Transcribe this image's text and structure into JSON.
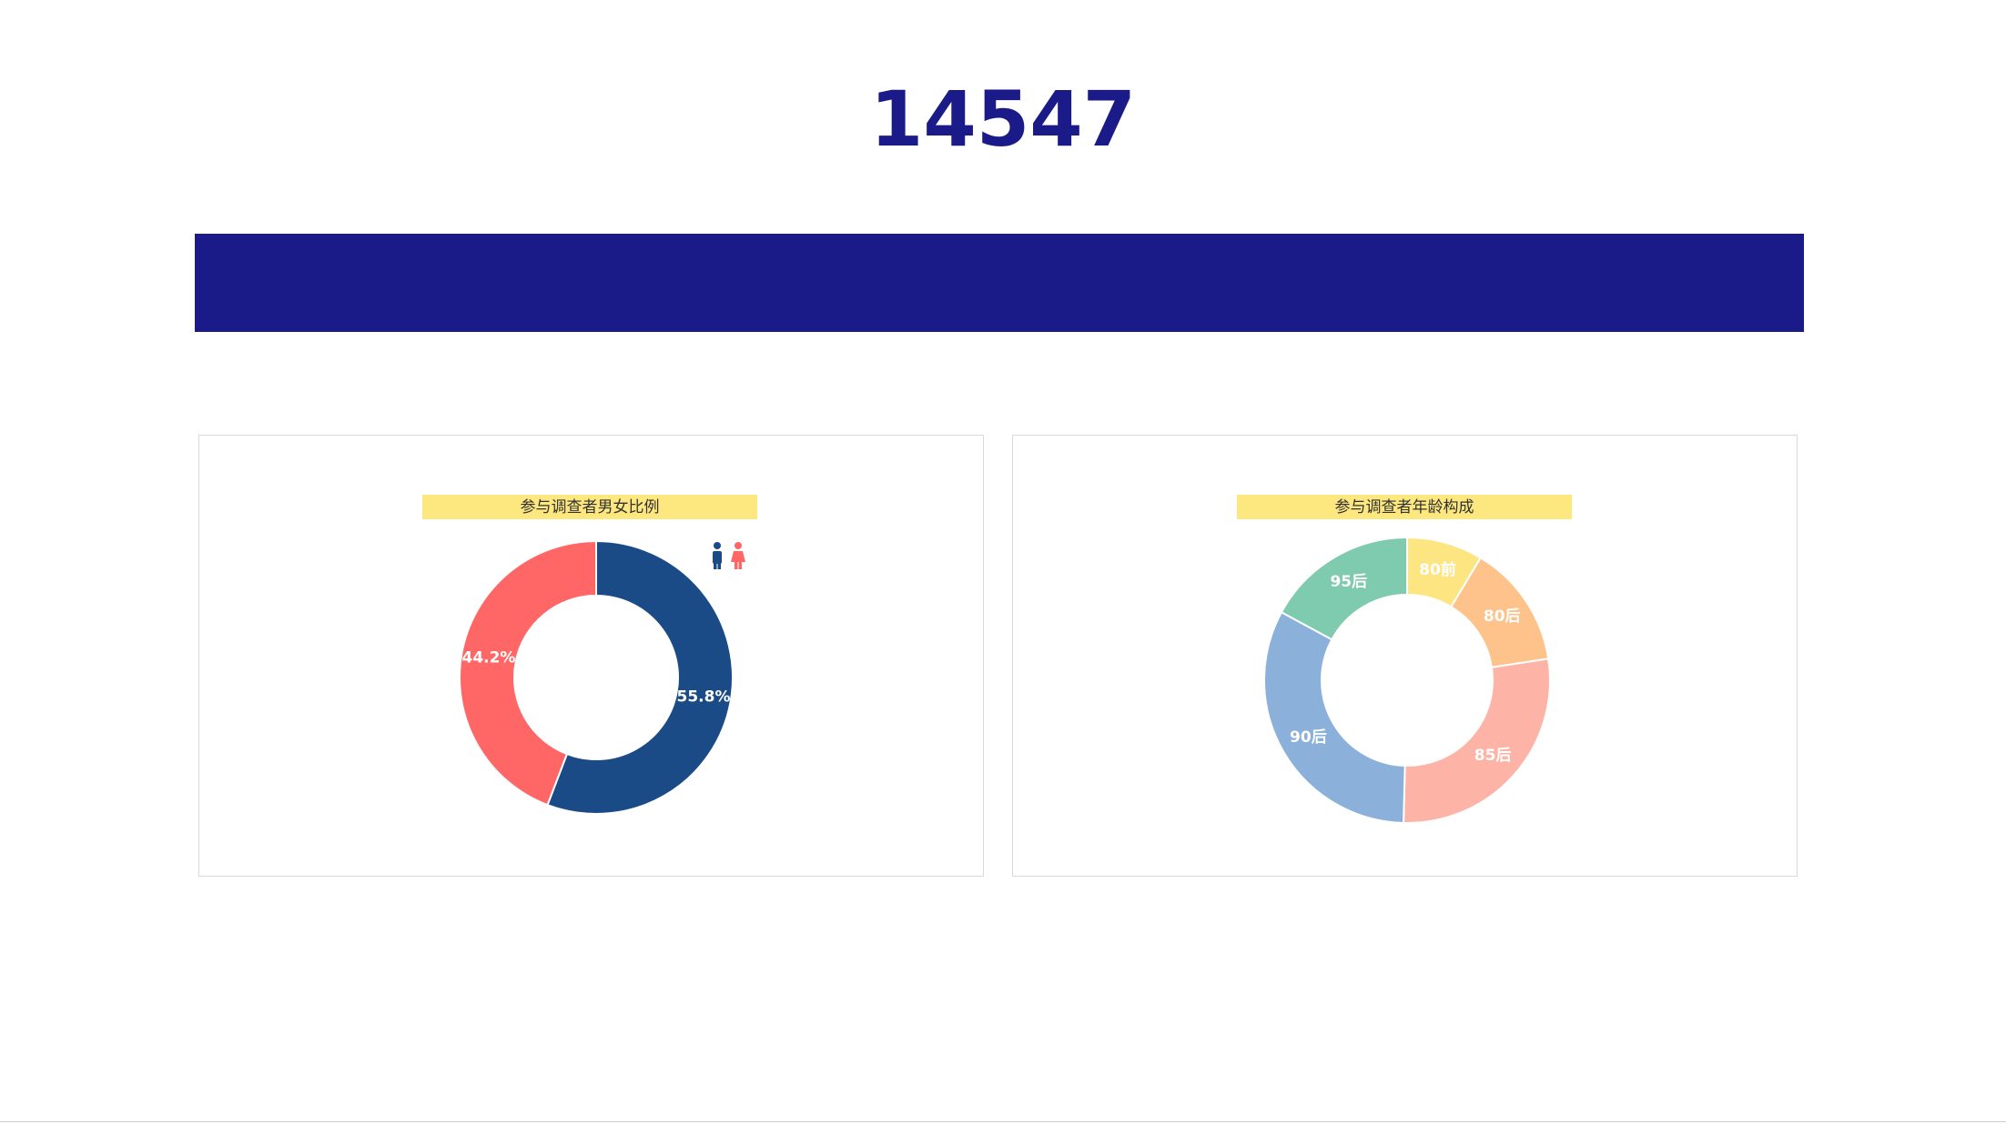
{
  "header": {
    "title": "14547"
  },
  "chart_data": [
    {
      "type": "pie",
      "title": "参与调查者男女比例",
      "values": [
        55.8,
        44.2
      ],
      "value_labels": [
        "55.8%",
        "44.2%"
      ],
      "colors": [
        "#1b4b86",
        "#ff6666"
      ]
    },
    {
      "type": "pie",
      "title": "参与调查者年龄构成",
      "categories": [
        "80前",
        "80后",
        "85后",
        "90后",
        "95后"
      ],
      "values": [
        8.6,
        14.0,
        27.8,
        32.5,
        17.1
      ],
      "colors": [
        "#fde581",
        "#fdc38a",
        "#fdb4a6",
        "#8bb1db",
        "#7fcbb0"
      ]
    }
  ]
}
